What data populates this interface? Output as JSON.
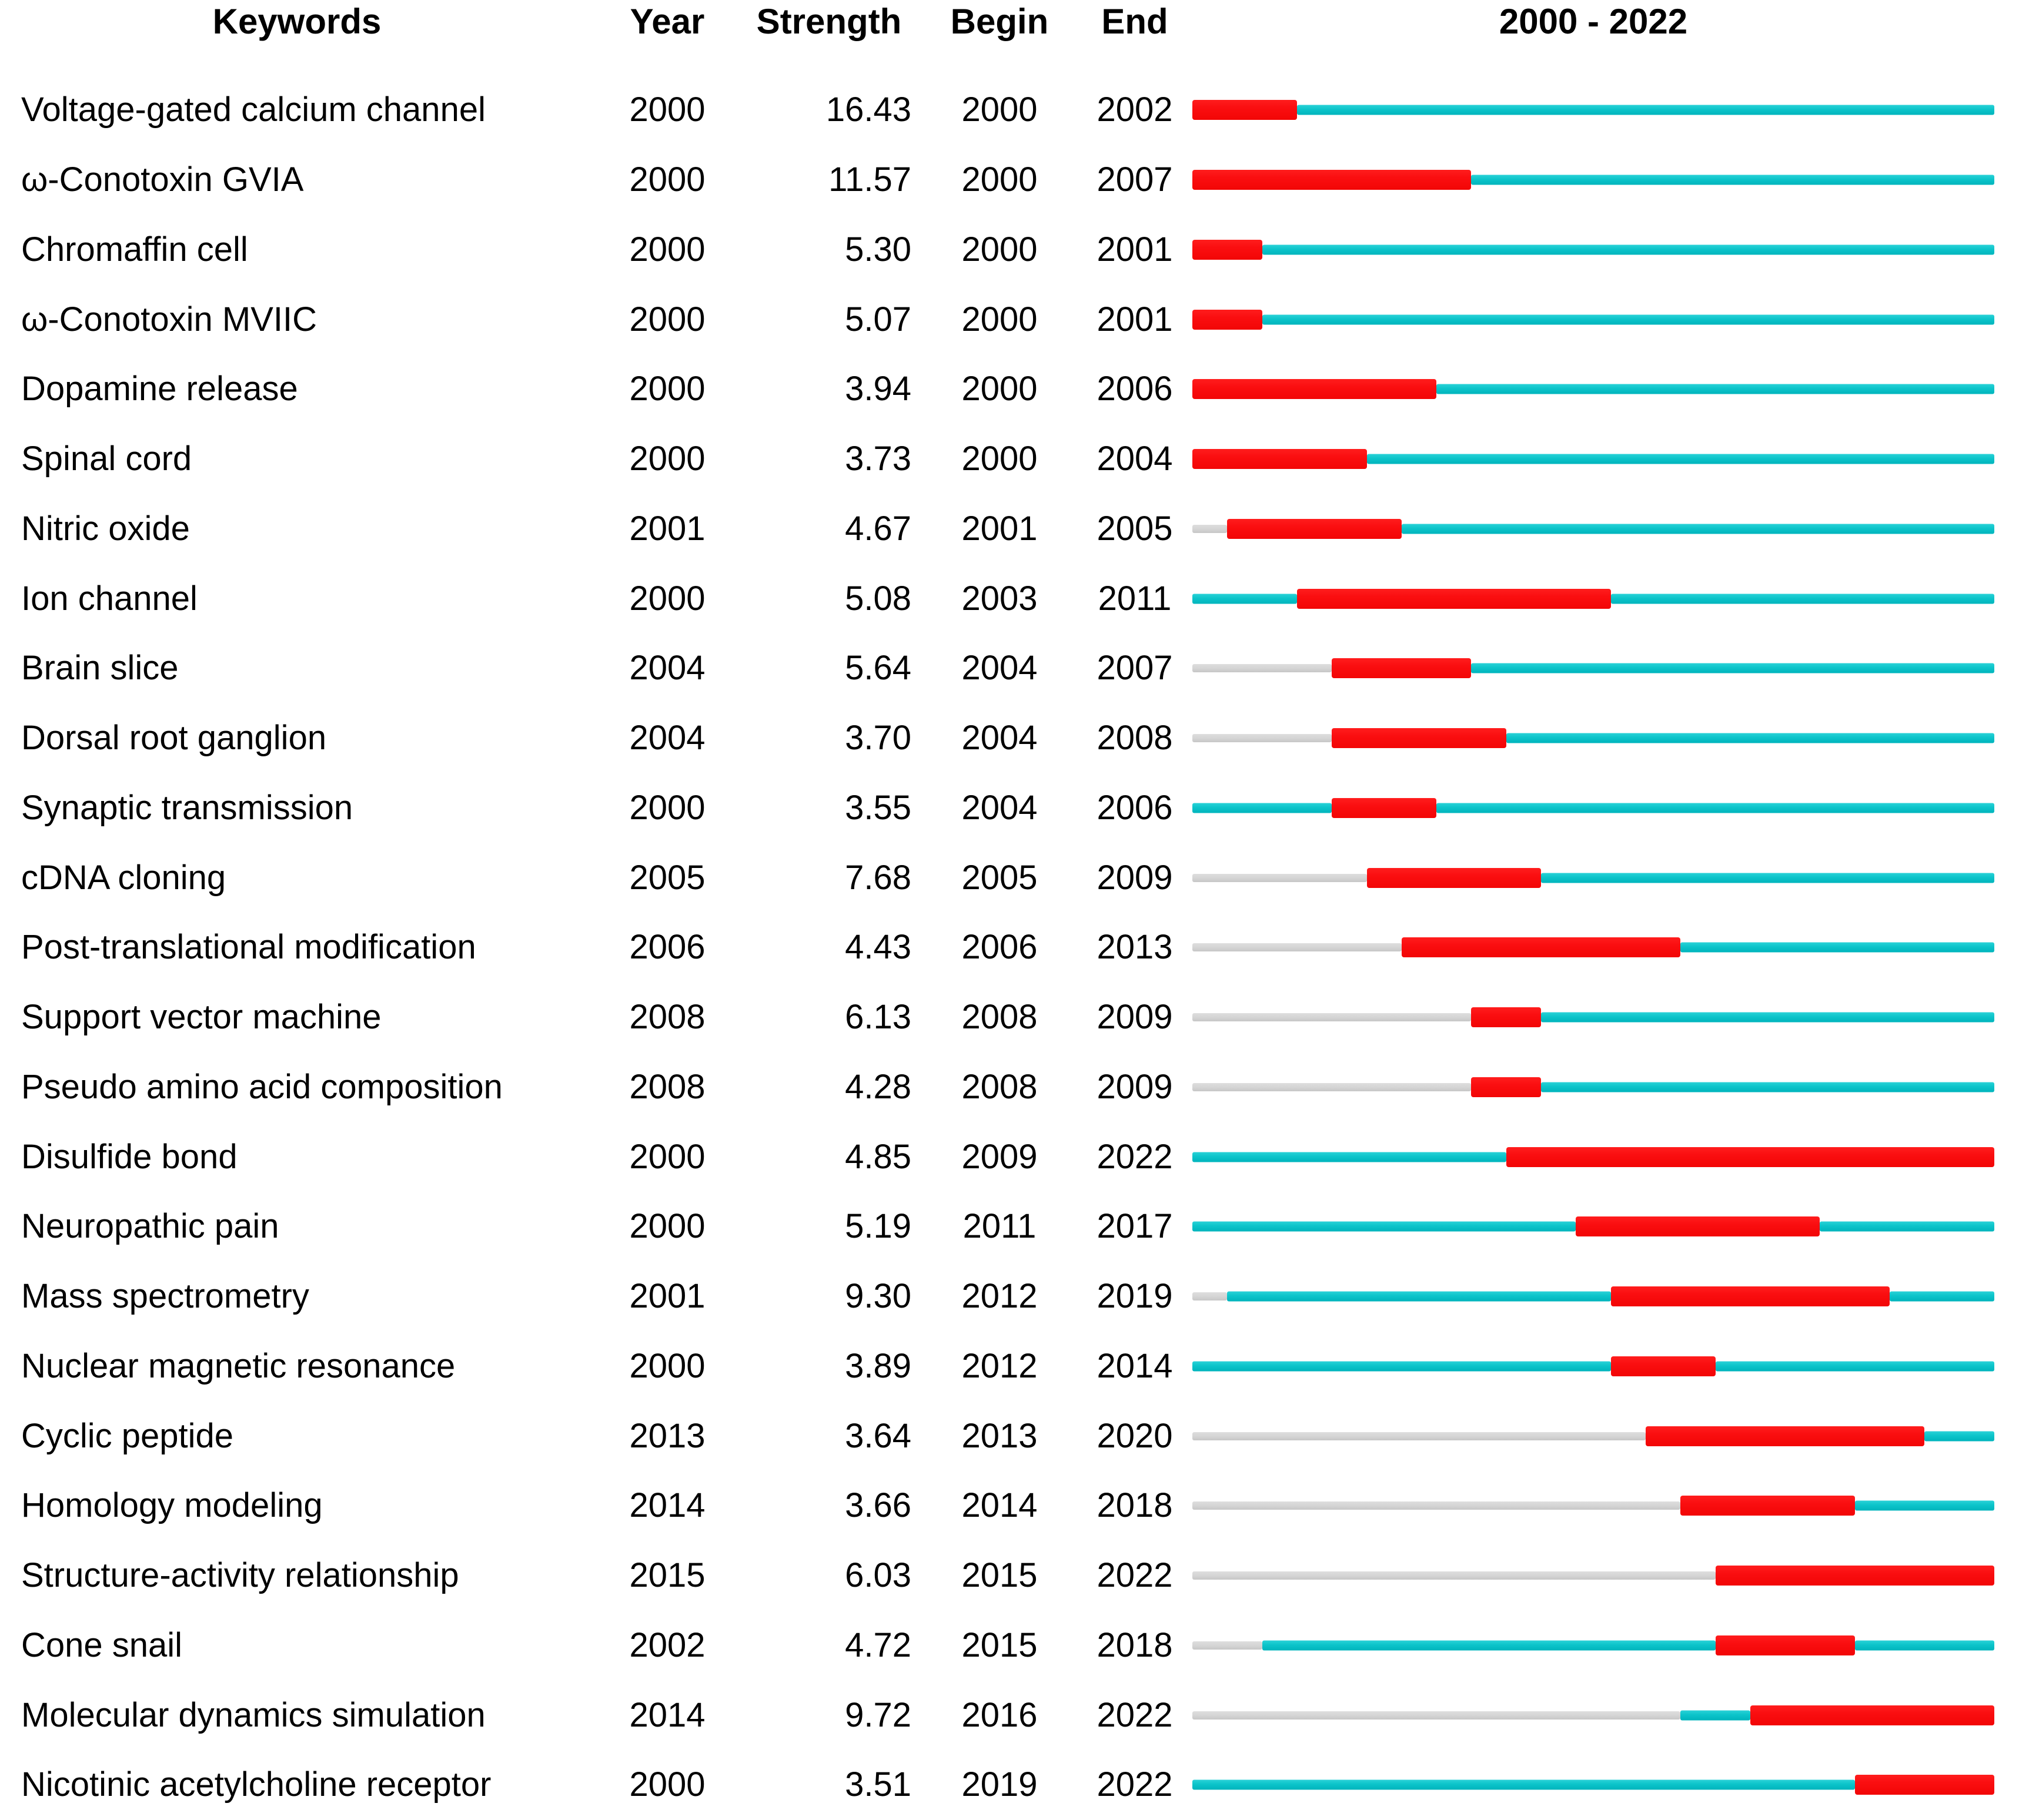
{
  "chart_data": {
    "type": "table",
    "columns": {
      "keywords": "Keywords",
      "year": "Year",
      "strength": "Strength",
      "begin": "Begin",
      "end": "End",
      "timeline": "2000 - 2022"
    },
    "timeline": {
      "start_year": 2000,
      "end_year": 2022
    },
    "colors": {
      "burst": "#fa0e10",
      "active": "#0cc4ca",
      "inactive": "#d4d4d4"
    },
    "rows": [
      {
        "keyword": "Voltage-gated calcium channel",
        "year": 2000,
        "strength": "16.43",
        "begin": 2000,
        "end": 2002
      },
      {
        "keyword": "ω-Conotoxin GVIA",
        "year": 2000,
        "strength": "11.57",
        "begin": 2000,
        "end": 2007
      },
      {
        "keyword": "Chromaffin cell",
        "year": 2000,
        "strength": "5.30",
        "begin": 2000,
        "end": 2001
      },
      {
        "keyword": "ω-Conotoxin MVIIC",
        "year": 2000,
        "strength": "5.07",
        "begin": 2000,
        "end": 2001
      },
      {
        "keyword": "Dopamine release",
        "year": 2000,
        "strength": "3.94",
        "begin": 2000,
        "end": 2006
      },
      {
        "keyword": "Spinal cord",
        "year": 2000,
        "strength": "3.73",
        "begin": 2000,
        "end": 2004
      },
      {
        "keyword": "Nitric oxide",
        "year": 2001,
        "strength": "4.67",
        "begin": 2001,
        "end": 2005
      },
      {
        "keyword": "Ion channel",
        "year": 2000,
        "strength": "5.08",
        "begin": 2003,
        "end": 2011
      },
      {
        "keyword": "Brain slice",
        "year": 2004,
        "strength": "5.64",
        "begin": 2004,
        "end": 2007
      },
      {
        "keyword": "Dorsal root ganglion",
        "year": 2004,
        "strength": "3.70",
        "begin": 2004,
        "end": 2008
      },
      {
        "keyword": "Synaptic transmission",
        "year": 2000,
        "strength": "3.55",
        "begin": 2004,
        "end": 2006
      },
      {
        "keyword": "cDNA cloning",
        "year": 2005,
        "strength": "7.68",
        "begin": 2005,
        "end": 2009
      },
      {
        "keyword": "Post-translational modification",
        "year": 2006,
        "strength": "4.43",
        "begin": 2006,
        "end": 2013
      },
      {
        "keyword": "Support vector machine",
        "year": 2008,
        "strength": "6.13",
        "begin": 2008,
        "end": 2009
      },
      {
        "keyword": "Pseudo amino acid composition",
        "year": 2008,
        "strength": "4.28",
        "begin": 2008,
        "end": 2009
      },
      {
        "keyword": "Disulfide bond",
        "year": 2000,
        "strength": "4.85",
        "begin": 2009,
        "end": 2022
      },
      {
        "keyword": "Neuropathic pain",
        "year": 2000,
        "strength": "5.19",
        "begin": 2011,
        "end": 2017
      },
      {
        "keyword": "Mass spectrometry",
        "year": 2001,
        "strength": "9.30",
        "begin": 2012,
        "end": 2019
      },
      {
        "keyword": "Nuclear magnetic resonance",
        "year": 2000,
        "strength": "3.89",
        "begin": 2012,
        "end": 2014
      },
      {
        "keyword": "Cyclic peptide",
        "year": 2013,
        "strength": "3.64",
        "begin": 2013,
        "end": 2020
      },
      {
        "keyword": "Homology modeling",
        "year": 2014,
        "strength": "3.66",
        "begin": 2014,
        "end": 2018
      },
      {
        "keyword": "Structure-activity relationship",
        "year": 2015,
        "strength": "6.03",
        "begin": 2015,
        "end": 2022
      },
      {
        "keyword": "Cone snail",
        "year": 2002,
        "strength": "4.72",
        "begin": 2015,
        "end": 2018
      },
      {
        "keyword": "Molecular dynamics simulation",
        "year": 2014,
        "strength": "9.72",
        "begin": 2016,
        "end": 2022
      },
      {
        "keyword": "Nicotinic acetylcholine receptor",
        "year": 2000,
        "strength": "3.51",
        "begin": 2019,
        "end": 2022
      }
    ]
  }
}
